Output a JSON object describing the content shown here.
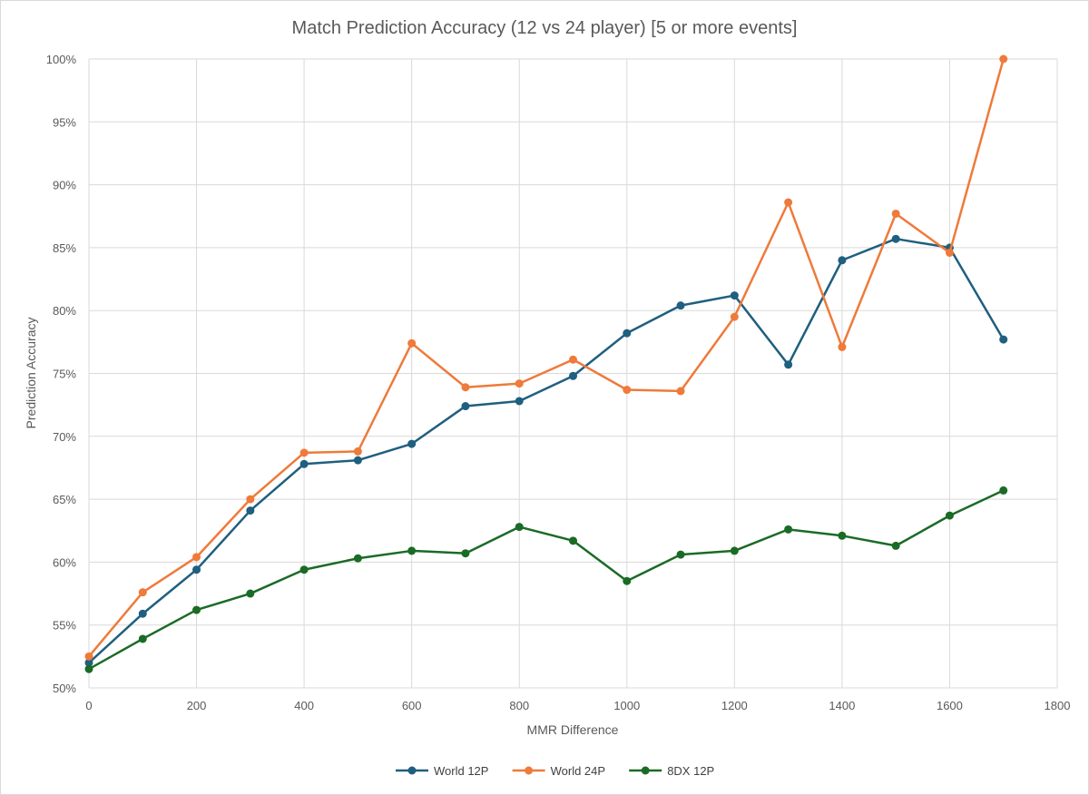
{
  "chart_data": {
    "type": "line",
    "title": "Match Prediction Accuracy (12 vs 24 player) [5 or more events]",
    "xlabel": "MMR Difference",
    "ylabel": "Prediction Accuracy",
    "xlim": [
      0,
      1800
    ],
    "ylim": [
      50,
      100
    ],
    "x_ticks": [
      0,
      200,
      400,
      600,
      800,
      1000,
      1200,
      1400,
      1600,
      1800
    ],
    "y_ticks": [
      50,
      55,
      60,
      65,
      70,
      75,
      80,
      85,
      90,
      95,
      100
    ],
    "x_tick_labels": [
      "0",
      "200",
      "400",
      "600",
      "800",
      "1000",
      "1200",
      "1400",
      "1600",
      "1800"
    ],
    "y_tick_labels": [
      "50%",
      "55%",
      "60%",
      "65%",
      "70%",
      "75%",
      "80%",
      "85%",
      "90%",
      "95%",
      "100%"
    ],
    "grid": true,
    "legend_position": "bottom",
    "x": [
      0,
      100,
      200,
      300,
      400,
      500,
      600,
      700,
      800,
      900,
      1000,
      1100,
      1200,
      1300,
      1400,
      1500,
      1600,
      1700
    ],
    "series": [
      {
        "name": "World 12P",
        "color": "#1f5f7f",
        "values": [
          52.0,
          55.9,
          59.4,
          64.1,
          67.8,
          68.1,
          69.4,
          72.4,
          72.8,
          74.8,
          78.2,
          80.4,
          81.2,
          75.7,
          84.0,
          85.7,
          85.0,
          77.7
        ]
      },
      {
        "name": "World 24P",
        "color": "#ef7a3a",
        "values": [
          52.5,
          57.6,
          60.4,
          65.0,
          68.7,
          68.8,
          77.4,
          73.9,
          74.2,
          76.1,
          73.7,
          73.6,
          79.5,
          88.6,
          77.1,
          87.7,
          84.6,
          100.0
        ]
      },
      {
        "name": "8DX 12P",
        "color": "#1a6b26",
        "values": [
          51.5,
          53.9,
          56.2,
          57.5,
          59.4,
          60.3,
          60.9,
          60.7,
          62.8,
          61.7,
          58.5,
          60.6,
          60.9,
          62.6,
          62.1,
          61.3,
          63.7,
          65.7
        ]
      }
    ]
  }
}
